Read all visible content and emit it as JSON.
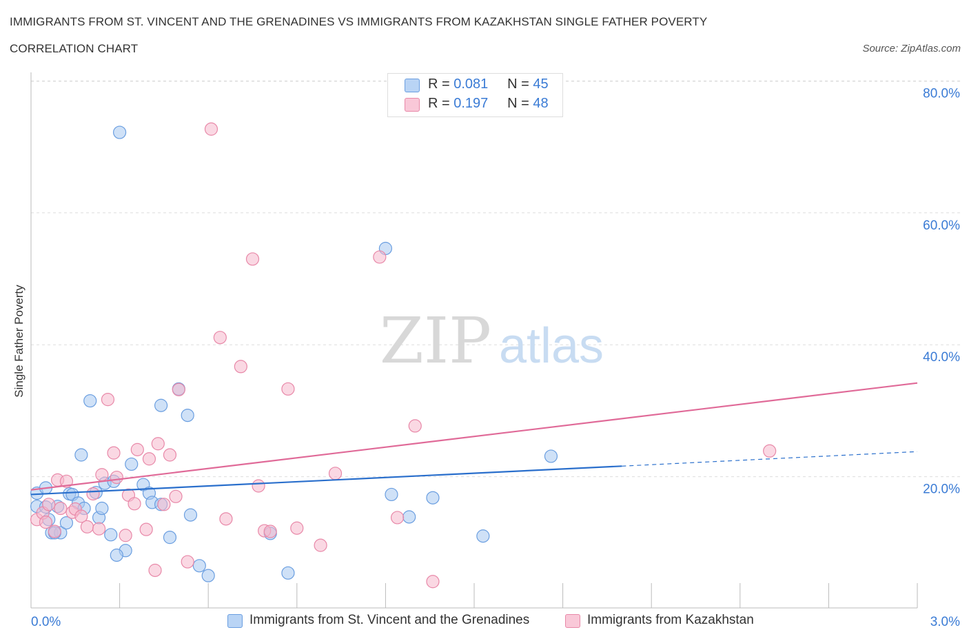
{
  "title_line1": "IMMIGRANTS FROM ST. VINCENT AND THE GRENADINES VS IMMIGRANTS FROM KAZAKHSTAN SINGLE FATHER POVERTY",
  "title_line2": "CORRELATION CHART",
  "source": "Source: ZipAtlas.com",
  "watermark": {
    "zip": "ZIP",
    "atlas": "atlas"
  },
  "legend": {
    "rows": [
      {
        "r_label": "R =",
        "r_value": "0.081",
        "n_label": "N =",
        "n_value": "45"
      },
      {
        "r_label": "R =",
        "r_value": "0.197",
        "n_label": "N =",
        "n_value": "48"
      }
    ]
  },
  "colors": {
    "blue_fill": "#a8c8f0",
    "blue_stroke": "#6a9ee0",
    "blue_line": "#2a6fcc",
    "pink_fill": "#f5b8cc",
    "pink_stroke": "#e888a8",
    "pink_line": "#e06a98",
    "axis_text": "#3a7bd5",
    "grid": "#dddddd"
  },
  "chart_data": {
    "type": "scatter",
    "ylabel": "Single Father Poverty",
    "x_tick_labels": [
      "0.0%",
      "3.0%"
    ],
    "y_tick_labels": [
      "20.0%",
      "40.0%",
      "60.0%",
      "80.0%"
    ],
    "xlim": [
      0,
      3.0
    ],
    "ylim": [
      0,
      80
    ],
    "y_ticks": [
      20,
      40,
      60,
      80
    ],
    "grid": true,
    "series": [
      {
        "name": "Immigrants from St. Vincent and the Grenadines",
        "color": "blue",
        "points": [
          [
            0.02,
            17.5
          ],
          [
            0.02,
            15.5
          ],
          [
            0.05,
            18.3
          ],
          [
            0.06,
            13.5
          ],
          [
            0.07,
            11.5
          ],
          [
            0.09,
            15.5
          ],
          [
            0.1,
            11.5
          ],
          [
            0.12,
            13.0
          ],
          [
            0.13,
            17.4
          ],
          [
            0.14,
            17.3
          ],
          [
            0.16,
            16.0
          ],
          [
            0.17,
            23.3
          ],
          [
            0.18,
            15.2
          ],
          [
            0.2,
            31.5
          ],
          [
            0.23,
            13.8
          ],
          [
            0.24,
            15.2
          ],
          [
            0.25,
            19.0
          ],
          [
            0.27,
            11.2
          ],
          [
            0.28,
            19.3
          ],
          [
            0.3,
            72.2
          ],
          [
            0.32,
            8.8
          ],
          [
            0.34,
            21.9
          ],
          [
            0.38,
            18.8
          ],
          [
            0.4,
            17.5
          ],
          [
            0.41,
            16.1
          ],
          [
            0.44,
            30.8
          ],
          [
            0.44,
            15.8
          ],
          [
            0.47,
            10.8
          ],
          [
            0.5,
            33.3
          ],
          [
            0.53,
            29.3
          ],
          [
            0.54,
            14.2
          ],
          [
            0.57,
            6.5
          ],
          [
            0.6,
            5.0
          ],
          [
            0.81,
            11.4
          ],
          [
            0.87,
            5.4
          ],
          [
            0.29,
            8.1
          ],
          [
            1.2,
            54.6
          ],
          [
            1.22,
            17.3
          ],
          [
            1.28,
            13.9
          ],
          [
            1.36,
            16.8
          ],
          [
            1.53,
            11.0
          ],
          [
            1.76,
            23.1
          ],
          [
            0.22,
            17.6
          ],
          [
            0.08,
            11.5
          ],
          [
            0.05,
            15.4
          ]
        ]
      },
      {
        "name": "Immigrants from Kazakhstan",
        "color": "pink",
        "points": [
          [
            0.02,
            13.5
          ],
          [
            0.04,
            14.5
          ],
          [
            0.05,
            13.1
          ],
          [
            0.06,
            15.8
          ],
          [
            0.08,
            11.7
          ],
          [
            0.09,
            19.5
          ],
          [
            0.12,
            19.3
          ],
          [
            0.14,
            14.6
          ],
          [
            0.15,
            15.1
          ],
          [
            0.17,
            14.0
          ],
          [
            0.19,
            12.4
          ],
          [
            0.21,
            17.4
          ],
          [
            0.23,
            12.1
          ],
          [
            0.24,
            20.3
          ],
          [
            0.26,
            31.7
          ],
          [
            0.28,
            23.6
          ],
          [
            0.29,
            19.9
          ],
          [
            0.32,
            11.1
          ],
          [
            0.33,
            17.2
          ],
          [
            0.35,
            15.9
          ],
          [
            0.36,
            24.1
          ],
          [
            0.39,
            12.0
          ],
          [
            0.4,
            22.7
          ],
          [
            0.42,
            5.8
          ],
          [
            0.43,
            25.0
          ],
          [
            0.45,
            15.8
          ],
          [
            0.47,
            23.3
          ],
          [
            0.49,
            17.0
          ],
          [
            0.5,
            33.2
          ],
          [
            0.53,
            7.1
          ],
          [
            0.61,
            72.7
          ],
          [
            0.64,
            41.1
          ],
          [
            0.66,
            13.6
          ],
          [
            0.71,
            36.7
          ],
          [
            0.75,
            53.0
          ],
          [
            0.77,
            18.6
          ],
          [
            0.79,
            11.8
          ],
          [
            0.81,
            11.7
          ],
          [
            0.87,
            33.3
          ],
          [
            0.9,
            12.2
          ],
          [
            0.98,
            9.6
          ],
          [
            1.03,
            20.5
          ],
          [
            1.18,
            53.3
          ],
          [
            1.24,
            13.8
          ],
          [
            1.3,
            27.7
          ],
          [
            1.36,
            4.1
          ],
          [
            2.5,
            23.9
          ],
          [
            0.1,
            15.2
          ]
        ]
      }
    ],
    "trend_lines": [
      {
        "series": "blue",
        "x_start": 0,
        "y_start": 17.3,
        "x_solid_end": 2.0,
        "y_solid_end": 21.6,
        "x_end": 3.0,
        "y_end": 23.8
      },
      {
        "series": "pink",
        "x_start": 0,
        "y_start": 18.0,
        "x_end": 3.0,
        "y_end": 34.2
      }
    ]
  },
  "bottom_legend": [
    {
      "label": "Immigrants from St. Vincent and the Grenadines"
    },
    {
      "label": "Immigrants from Kazakhstan"
    }
  ]
}
